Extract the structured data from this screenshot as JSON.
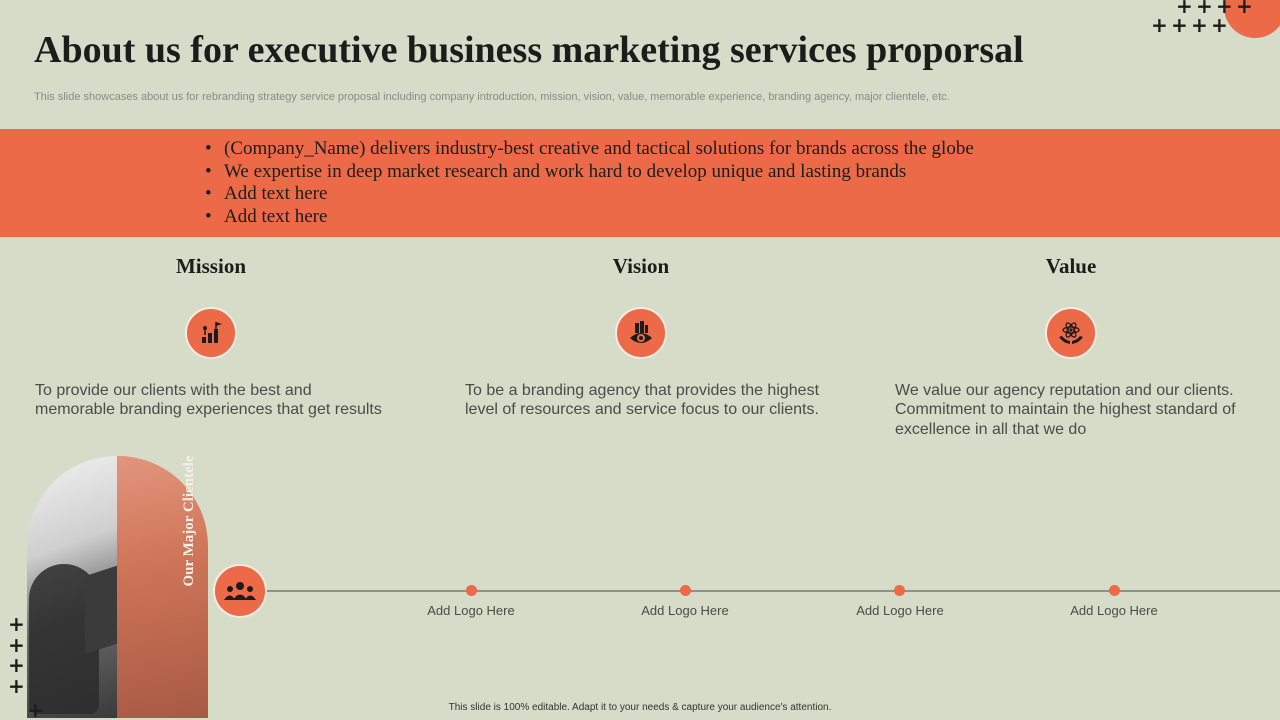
{
  "title": "About us for executive business marketing services proporsal",
  "subtitle": "This slide showcases about us for rebranding strategy service proposal including company introduction, mission, vision, value, memorable experience, branding agency, major clientele, etc.",
  "intro_bullets": [
    "(Company_Name) delivers industry-best creative and tactical solutions for brands across the globe",
    "We expertise in deep market research and work hard to develop unique and lasting brands",
    "Add text here",
    "Add text here"
  ],
  "columns": [
    {
      "heading": "Mission",
      "icon": "growth-flag-icon",
      "text": "To provide our clients with the best and memorable branding experiences that get results"
    },
    {
      "heading": "Vision",
      "icon": "eye-city-icon",
      "text": "To be a branding agency that provides the highest level of resources and service focus to our clients."
    },
    {
      "heading": "Value",
      "icon": "atom-hands-icon",
      "text": "We value our agency reputation and our clients. Commitment to maintain the highest standard of excellence in all that we do"
    }
  ],
  "clientele": {
    "label": "Our Major Clientele",
    "icon": "people-group-icon",
    "logos": [
      "Add Logo Here",
      "Add Logo Here",
      "Add Logo Here",
      "Add Logo Here"
    ]
  },
  "footer": "This slide is 100% editable. Adapt it to your needs & capture your audience's attention.",
  "colors": {
    "accent": "#ec6a47",
    "background": "#d6dcc8"
  }
}
